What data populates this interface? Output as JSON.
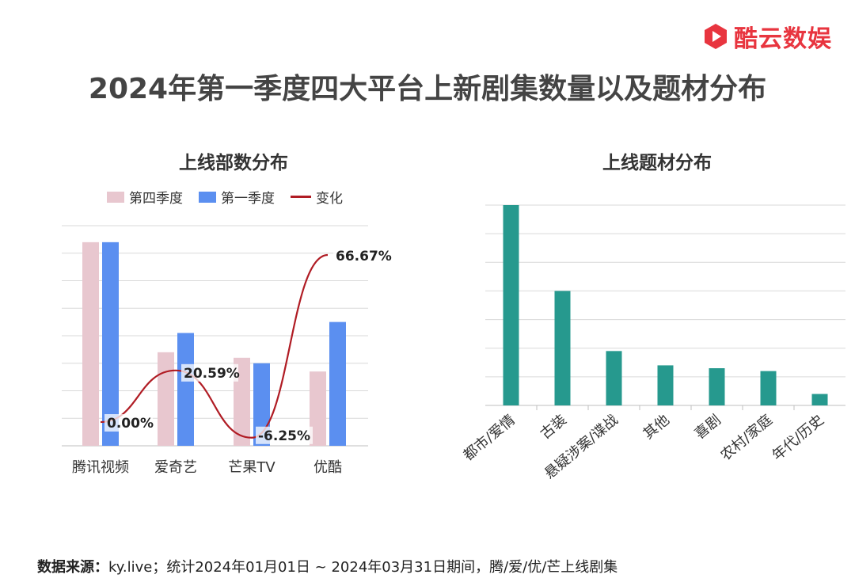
{
  "brand": {
    "name": "酷云数娱",
    "color": "#e8353f"
  },
  "title": "2024年第一季度四大平台上新剧集数量以及题材分布",
  "colors": {
    "q4": "#e8c7cf",
    "q1": "#5b8ff0",
    "change": "#b01c24",
    "theme": "#26998e",
    "grid": "#d9d9d9"
  },
  "chart_data": [
    {
      "type": "bar",
      "title": "上线部数分布",
      "categories": [
        "腾讯视频",
        "爱奇艺",
        "芒果TV",
        "优酷"
      ],
      "series": [
        {
          "name": "第四季度",
          "type": "bar",
          "values": [
            37,
            17,
            16,
            13.5
          ]
        },
        {
          "name": "第一季度",
          "type": "bar",
          "values": [
            37,
            20.5,
            15,
            22.5
          ]
        },
        {
          "name": "变化",
          "type": "line",
          "values": [
            0.0,
            20.59,
            -6.25,
            66.67
          ],
          "labels": [
            "0.00%",
            "20.59%",
            "-6.25%",
            "66.67%"
          ]
        }
      ],
      "legend": "top",
      "ylim": [
        0,
        40
      ],
      "grid": true
    },
    {
      "type": "bar",
      "title": "上线题材分布",
      "categories": [
        "都市/爱情",
        "古装",
        "悬疑涉案/谍战",
        "其他",
        "喜剧",
        "农村/家庭",
        "年代/历史"
      ],
      "values": [
        35,
        20,
        9.5,
        7,
        6.5,
        6,
        2
      ],
      "ylim": [
        0,
        35
      ],
      "grid": true
    }
  ],
  "footer": {
    "label": "数据来源：",
    "text": "ky.live；统计2024年01月01日 ~ 2024年03月31日期间，腾/爱/优/芒上线剧集"
  }
}
